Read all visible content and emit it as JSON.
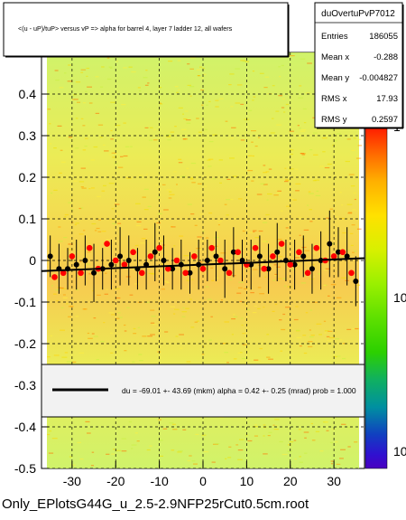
{
  "title_box": {
    "text": "<(u - uP)/tuP> versus   vP => alpha for barrel 4, layer 7 ladder 12, all wafers"
  },
  "stats_box": {
    "name": "duOvertuPvP7012",
    "rows": [
      {
        "label": "Entries",
        "value": "186055"
      },
      {
        "label": "Mean x",
        "value": "-0.288"
      },
      {
        "label": "Mean y",
        "value": "-0.004827"
      },
      {
        "label": "RMS x",
        "value": "17.93"
      },
      {
        "label": "RMS y",
        "value": "0.2597"
      }
    ]
  },
  "fit_legend": {
    "text": "du =  -69.01 +- 43.69 (mkm) alpha =    0.42 +-  0.25 (mrad) prob = 1.000"
  },
  "footer": {
    "text": "Only_EPlotsG44G_u_2.5-2.9NFP25rCut0.5cm.root"
  },
  "colors": {
    "profile_black": "#000000",
    "profile_red": "#ff0000",
    "fit_line": "#000000",
    "palette": [
      "#ff1a00",
      "#ff6a00",
      "#ffb000",
      "#ffe100",
      "#d8f000",
      "#9af000",
      "#5ee000",
      "#2cd000",
      "#10b060",
      "#0090a0",
      "#1040c0",
      "#3010d0",
      "#4a00c0"
    ]
  },
  "chart_data": {
    "type": "scatter",
    "xlim": [
      -37,
      37
    ],
    "ylim": [
      -0.5,
      0.5
    ],
    "x_ticks": [
      -30,
      -20,
      -10,
      0,
      10,
      20,
      30
    ],
    "x_tick_labels": [
      "-30",
      "-20",
      "-10",
      "0",
      "10",
      "20",
      "30"
    ],
    "y_ticks": [
      -0.5,
      -0.4,
      -0.3,
      -0.2,
      -0.1,
      0,
      0.1,
      0.2,
      0.3,
      0.4
    ],
    "y_tick_labels": [
      "-0.5",
      "-0.4",
      "-0.3",
      "-0.2",
      "-0.1",
      "0",
      "0.1",
      "0.2",
      "0.3",
      "0.4"
    ],
    "grid": true,
    "colorbar": {
      "labels": [
        "1",
        "10",
        "10"
      ],
      "label_values": [
        1,
        0.5,
        0.05
      ]
    },
    "fit": {
      "intercept": -0.01,
      "slope": 0.00042
    },
    "series": [
      {
        "marker": "black",
        "x": [
          -35,
          -33,
          -31,
          -29,
          -27,
          -25,
          -23,
          -21,
          -19,
          -17,
          -15,
          -13,
          -11,
          -9,
          -7,
          -5,
          -3,
          -1,
          1,
          3,
          5,
          7,
          9,
          11,
          13,
          15,
          17,
          19,
          21,
          23,
          25,
          27,
          29,
          31,
          33,
          35
        ],
        "y": [
          0.01,
          -0.02,
          -0.02,
          -0.01,
          0.0,
          -0.03,
          -0.02,
          -0.01,
          0.01,
          0.0,
          -0.02,
          -0.01,
          0.02,
          0.0,
          -0.02,
          -0.01,
          -0.03,
          -0.01,
          0.0,
          0.01,
          -0.02,
          0.02,
          0.0,
          -0.01,
          0.01,
          -0.02,
          0.02,
          0.0,
          -0.01,
          0.01,
          -0.02,
          0.0,
          0.04,
          0.02,
          0.01,
          -0.05
        ],
        "err": [
          0.05,
          0.06,
          0.05,
          0.06,
          0.06,
          0.07,
          0.05,
          0.06,
          0.07,
          0.06,
          0.05,
          0.06,
          0.07,
          0.06,
          0.05,
          0.06,
          0.05,
          0.06,
          0.05,
          0.06,
          0.07,
          0.06,
          0.05,
          0.06,
          0.05,
          0.06,
          0.07,
          0.05,
          0.06,
          0.05,
          0.06,
          0.07,
          0.08,
          0.06,
          0.07,
          0.06
        ]
      },
      {
        "marker": "red",
        "x": [
          -34,
          -32,
          -30,
          -28,
          -26,
          -24,
          -22,
          -20,
          -18,
          -16,
          -14,
          -12,
          -10,
          -8,
          -6,
          -4,
          -2,
          0,
          2,
          4,
          6,
          8,
          10,
          12,
          14,
          16,
          18,
          20,
          22,
          24,
          26,
          28,
          30,
          32,
          34
        ],
        "y": [
          -0.04,
          -0.03,
          0.01,
          -0.03,
          0.03,
          -0.02,
          0.04,
          0.0,
          -0.01,
          0.02,
          -0.03,
          0.01,
          0.03,
          -0.02,
          0.0,
          -0.03,
          0.01,
          -0.02,
          0.03,
          0.0,
          -0.03,
          0.02,
          -0.01,
          0.03,
          -0.02,
          0.01,
          0.04,
          -0.01,
          0.02,
          -0.03,
          0.03,
          0.0,
          0.01,
          0.02,
          -0.03
        ]
      }
    ]
  }
}
